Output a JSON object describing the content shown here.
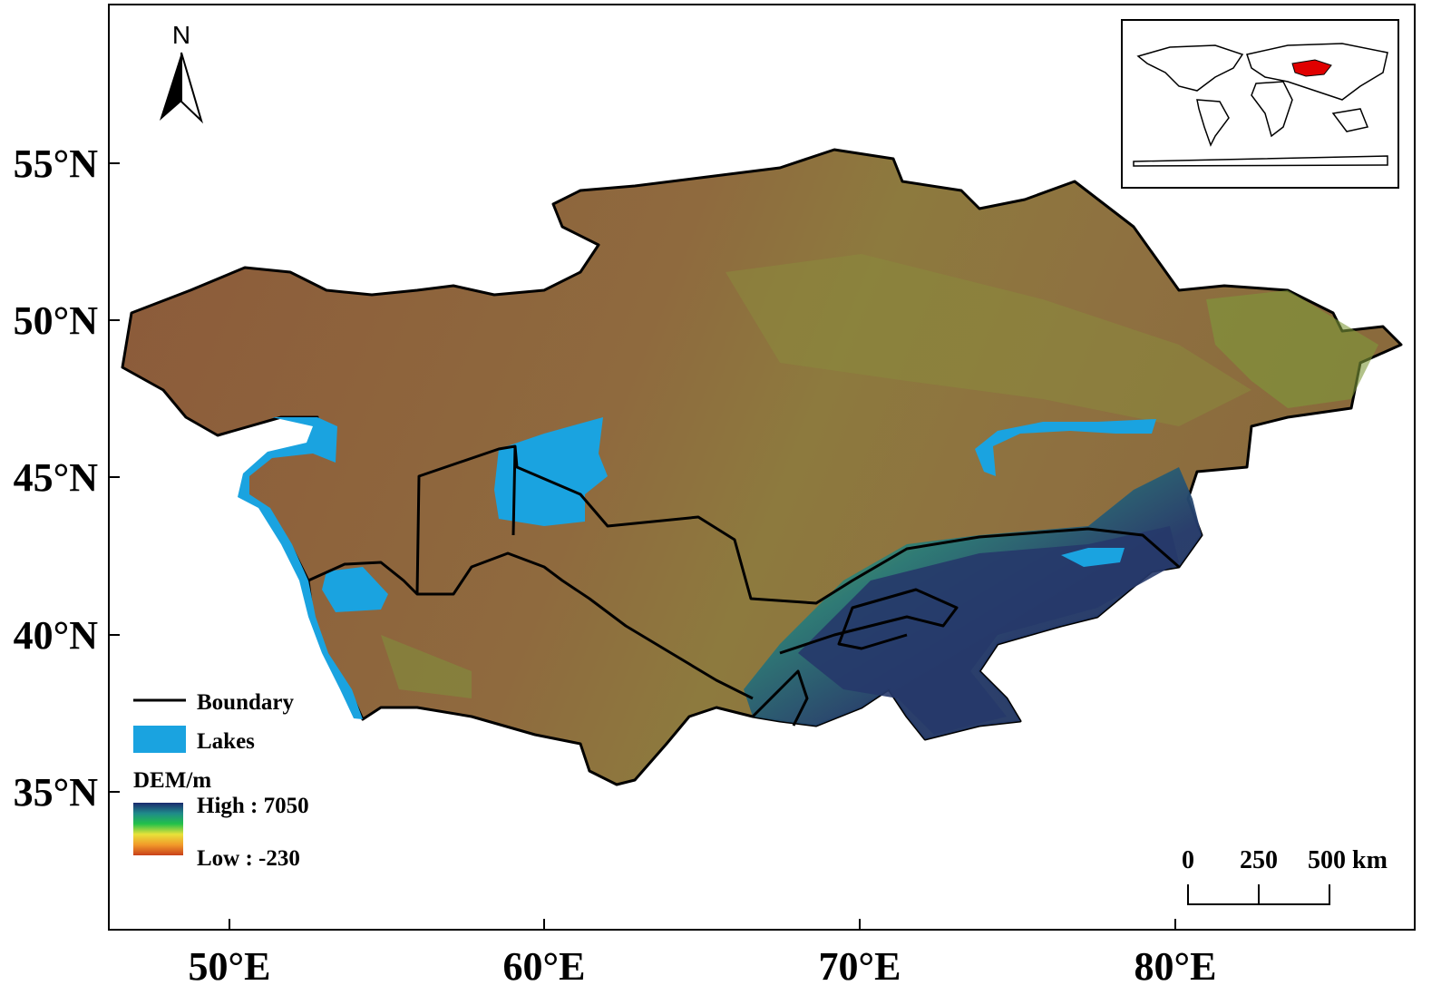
{
  "map": {
    "north_label": "N",
    "lat_labels": [
      "55°N",
      "50°N",
      "45°N",
      "40°N",
      "35°N"
    ],
    "lon_labels": [
      "50°E",
      "60°E",
      "70°E",
      "80°E"
    ],
    "legend": {
      "boundary": "Boundary",
      "lakes": "Lakes",
      "dem_title": "DEM/m",
      "high": "High : 7050",
      "low": "Low : -230"
    },
    "scale_bar": [
      "0",
      "250",
      "500 km"
    ]
  }
}
